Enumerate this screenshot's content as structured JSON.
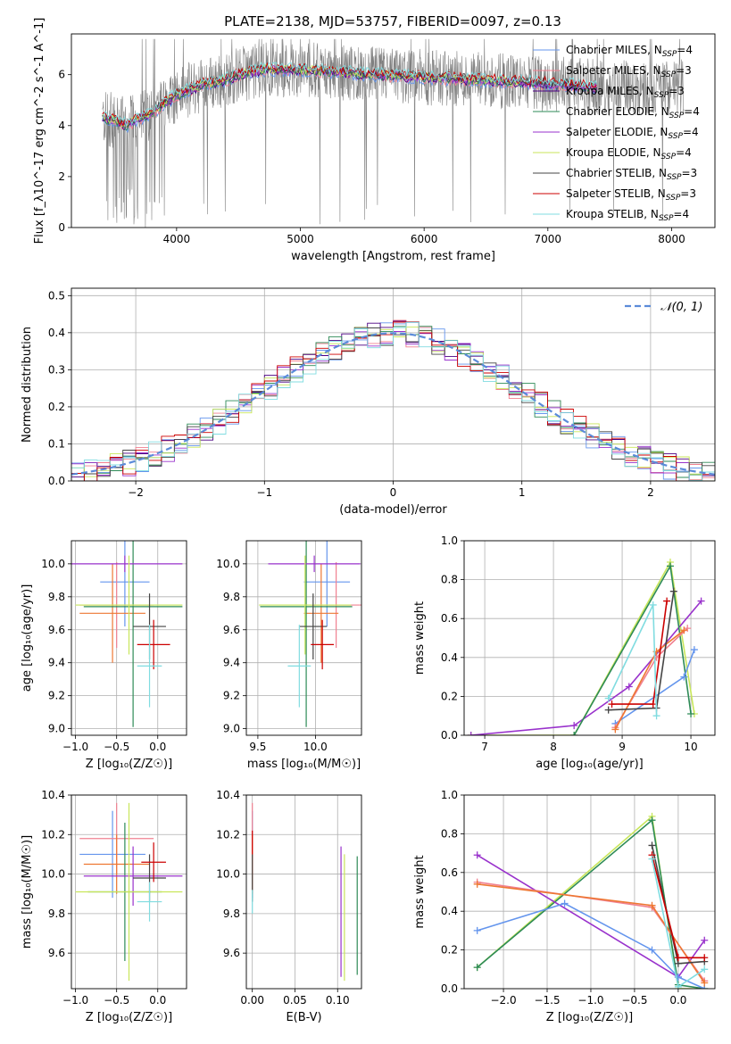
{
  "figure": {
    "title": "PLATE=2138, MJD=53757, FIBERID=0097, z=0.13"
  },
  "colors": {
    "Chabrier MILES": "#6495ed",
    "Salpeter MILES": "#f08090",
    "Kroupa MILES": "#4b0082",
    "Chabrier ELODIE": "#2e8b57",
    "Salpeter ELODIE": "#9932cc",
    "Kroupa ELODIE": "#c8e65a",
    "Chabrier STELIB": "#444444",
    "Salpeter STELIB": "#cc0000",
    "Kroupa STELIB": "#80dce0",
    "Kroupa MILES (point plots)": "#ee7733",
    "spectrum": "#808080"
  },
  "chart_data": [
    {
      "id": "spectrum",
      "type": "line",
      "title": "PLATE=2138, MJD=53757, FIBERID=0097, z=0.13",
      "xlabel": "wavelength [Angstrom, rest frame]",
      "ylabel": "Flux [f_λ10^-17 erg cm^-2 s^-1 A^-1]",
      "xlim": [
        3150,
        8350
      ],
      "ylim": [
        0,
        7.6
      ],
      "xticks": [
        4000,
        5000,
        6000,
        7000,
        8000
      ],
      "yticks": [
        0,
        2,
        4,
        6
      ],
      "legend_position": "top-right",
      "legend": [
        {
          "label": "Chabrier MILES, N",
          "sub": "SSP",
          "eq": "=4",
          "color": "#6495ed"
        },
        {
          "label": "Salpeter MILES, N",
          "sub": "SSP",
          "eq": "=3",
          "color": "#f08090"
        },
        {
          "label": "Kroupa MILES, N",
          "sub": "SSP",
          "eq": "=3",
          "color": "#4b0082"
        },
        {
          "label": "Chabrier ELODIE, N",
          "sub": "SSP",
          "eq": "=4",
          "color": "#2e8b57"
        },
        {
          "label": "Salpeter ELODIE, N",
          "sub": "SSP",
          "eq": "=4",
          "color": "#9932cc"
        },
        {
          "label": "Kroupa ELODIE, N",
          "sub": "SSP",
          "eq": "=4",
          "color": "#c8e65a"
        },
        {
          "label": "Chabrier STELIB, N",
          "sub": "SSP",
          "eq": "=3",
          "color": "#444444"
        },
        {
          "label": "Salpeter STELIB, N",
          "sub": "SSP",
          "eq": "=3",
          "color": "#cc0000"
        },
        {
          "label": "Kroupa STELIB, N",
          "sub": "SSP",
          "eq": "=4",
          "color": "#80dce0"
        }
      ],
      "model_continuum": {
        "x": [
          3400,
          3500,
          3600,
          3700,
          3800,
          3900,
          4000,
          4100,
          4200,
          4300,
          4400,
          4500,
          4700,
          5000,
          5300,
          5600,
          6000,
          6400,
          6800,
          7200,
          7400
        ],
        "y": [
          4.3,
          4.2,
          4.0,
          4.3,
          4.5,
          4.9,
          5.2,
          5.4,
          5.6,
          5.7,
          5.8,
          6.0,
          6.2,
          6.2,
          6.1,
          6.0,
          5.9,
          5.8,
          5.7,
          5.6,
          5.5
        ]
      }
    },
    {
      "id": "residuals",
      "type": "line",
      "xlabel": "(data-model)/error",
      "ylabel": "Normed distribution",
      "xlim": [
        -2.5,
        2.5
      ],
      "ylim": [
        0,
        0.52
      ],
      "xticks": [
        -2,
        -1,
        0,
        1,
        2
      ],
      "yticks": [
        0.0,
        0.1,
        0.2,
        0.3,
        0.4,
        0.5
      ],
      "legend_position": "top-right",
      "legend_label": "𝒩(0, 1)",
      "gaussian": {
        "mean": 0,
        "sigma": 1,
        "color": "#5b8bd9"
      }
    },
    {
      "id": "age-vs-Z",
      "type": "scatter",
      "xlabel": "Z [log₁₀(Z/Z☉)]",
      "ylabel": "age  [log₁₀(age/yr)]",
      "xlim": [
        -1.05,
        0.35
      ],
      "ylim": [
        8.96,
        10.14
      ],
      "xticks": [
        -1.0,
        -0.5,
        0.0
      ],
      "yticks": [
        9.0,
        9.2,
        9.4,
        9.6,
        9.8,
        10.0
      ],
      "series": [
        {
          "name": "Chabrier MILES",
          "color": "#6495ed",
          "x": -0.4,
          "xerr": 0.3,
          "y": 9.89,
          "yerr": 0.27
        },
        {
          "name": "Salpeter MILES",
          "color": "#f08090",
          "x": -0.5,
          "xerr": 0.45,
          "y": 9.75,
          "yerr": 0.26
        },
        {
          "name": "Kroupa MILES",
          "color": "#ee7733",
          "x": -0.55,
          "xerr": 0.4,
          "y": 9.7,
          "yerr": 0.3
        },
        {
          "name": "Chabrier ELODIE",
          "color": "#2e8b57",
          "x": -0.3,
          "xerr": 0.6,
          "y": 9.74,
          "yerr": 0.73
        },
        {
          "name": "Salpeter ELODIE",
          "color": "#9932cc",
          "x": -0.4,
          "xerr": 0.7,
          "y": 10.0,
          "yerr": 0.05
        },
        {
          "name": "Kroupa ELODIE",
          "color": "#c8e65a",
          "x": -0.35,
          "xerr": 0.65,
          "y": 9.75,
          "yerr": 0.3
        },
        {
          "name": "Chabrier STELIB",
          "color": "#444444",
          "x": -0.1,
          "xerr": 0.2,
          "y": 9.62,
          "yerr": 0.2
        },
        {
          "name": "Salpeter STELIB",
          "color": "#cc0000",
          "x": -0.05,
          "xerr": 0.2,
          "y": 9.51,
          "yerr": 0.15
        },
        {
          "name": "Kroupa STELIB",
          "color": "#80dce0",
          "x": -0.1,
          "xerr": 0.15,
          "y": 9.38,
          "yerr": 0.25
        }
      ]
    },
    {
      "id": "age-vs-mass",
      "type": "scatter",
      "xlabel": "mass [log₁₀(M/M☉)]",
      "ylabel": "",
      "xlim": [
        9.4,
        10.4
      ],
      "ylim": [
        8.96,
        10.14
      ],
      "xticks": [
        9.5,
        10.0
      ],
      "yticks": [
        9.0,
        9.2,
        9.4,
        9.6,
        9.8,
        10.0
      ],
      "series": [
        {
          "name": "Chabrier MILES",
          "color": "#6495ed",
          "x": 10.1,
          "xerr": 0.2,
          "y": 9.89,
          "yerr": 0.27
        },
        {
          "name": "Salpeter MILES",
          "color": "#f08090",
          "x": 10.18,
          "xerr": 0.22,
          "y": 9.75,
          "yerr": 0.26
        },
        {
          "name": "Kroupa MILES",
          "color": "#ee7733",
          "x": 10.05,
          "xerr": 0.15,
          "y": 9.7,
          "yerr": 0.3
        },
        {
          "name": "Chabrier ELODIE",
          "color": "#2e8b57",
          "x": 9.92,
          "xerr": 0.4,
          "y": 9.74,
          "yerr": 0.73
        },
        {
          "name": "Salpeter ELODIE",
          "color": "#9932cc",
          "x": 9.99,
          "xerr": 0.4,
          "y": 10.0,
          "yerr": 0.05
        },
        {
          "name": "Kroupa ELODIE",
          "color": "#c8e65a",
          "x": 9.91,
          "xerr": 0.4,
          "y": 9.75,
          "yerr": 0.3
        },
        {
          "name": "Chabrier STELIB",
          "color": "#444444",
          "x": 9.98,
          "xerr": 0.12,
          "y": 9.62,
          "yerr": 0.2
        },
        {
          "name": "Salpeter STELIB",
          "color": "#cc0000",
          "x": 10.06,
          "xerr": 0.1,
          "y": 9.51,
          "yerr": 0.15
        },
        {
          "name": "Kroupa STELIB",
          "color": "#80dce0",
          "x": 9.86,
          "xerr": 0.1,
          "y": 9.38,
          "yerr": 0.25
        }
      ]
    },
    {
      "id": "weight-vs-age",
      "type": "line",
      "xlabel": "age  [log₁₀(age/yr)]",
      "ylabel": "mass weight",
      "xlim": [
        6.7,
        10.35
      ],
      "ylim": [
        0,
        1.0
      ],
      "xticks": [
        7,
        8,
        9,
        10
      ],
      "yticks": [
        0.0,
        0.2,
        0.4,
        0.6,
        0.8,
        1.0
      ],
      "series": [
        {
          "name": "Kroupa ELODIE",
          "color": "#c8e65a",
          "x": [
            6.8,
            8.3,
            9.7,
            10.05
          ],
          "y": [
            0.0,
            0.0,
            0.89,
            0.11
          ]
        },
        {
          "name": "Salpeter ELODIE",
          "color": "#9932cc",
          "x": [
            6.8,
            8.3,
            9.1,
            10.15
          ],
          "y": [
            0.0,
            0.05,
            0.25,
            0.69
          ]
        },
        {
          "name": "Chabrier ELODIE",
          "color": "#2e8b57",
          "x": [
            8.3,
            9.7,
            10.0
          ],
          "y": [
            0.0,
            0.87,
            0.11
          ]
        },
        {
          "name": "Chabrier MILES",
          "color": "#6495ed",
          "x": [
            8.9,
            9.9,
            10.05
          ],
          "y": [
            0.06,
            0.3,
            0.44
          ]
        },
        {
          "name": "Salpeter MILES",
          "color": "#f08090",
          "x": [
            8.9,
            9.5,
            9.95
          ],
          "y": [
            0.04,
            0.4,
            0.55
          ]
        },
        {
          "name": "Kroupa MILES",
          "color": "#ee7733",
          "x": [
            8.9,
            9.5,
            9.9
          ],
          "y": [
            0.03,
            0.43,
            0.54
          ]
        },
        {
          "name": "Chabrier STELIB",
          "color": "#444444",
          "x": [
            8.8,
            9.5,
            9.75
          ],
          "y": [
            0.13,
            0.14,
            0.74
          ]
        },
        {
          "name": "Salpeter STELIB",
          "color": "#cc0000",
          "x": [
            8.85,
            9.45,
            9.65
          ],
          "y": [
            0.16,
            0.16,
            0.69
          ]
        },
        {
          "name": "Kroupa STELIB",
          "color": "#80dce0",
          "x": [
            8.8,
            9.45,
            9.5
          ],
          "y": [
            0.19,
            0.67,
            0.1
          ]
        }
      ]
    },
    {
      "id": "mass-vs-Z",
      "type": "scatter",
      "xlabel": "Z [log₁₀(Z/Z☉)]",
      "ylabel": "mass [log₁₀(M/M☉)]",
      "xlim": [
        -1.05,
        0.35
      ],
      "ylim": [
        9.42,
        10.4
      ],
      "xticks": [
        -1.0,
        -0.5,
        0.0
      ],
      "yticks": [
        9.6,
        9.8,
        10.0,
        10.2,
        10.4
      ],
      "series": [
        {
          "name": "Chabrier MILES",
          "color": "#6495ed",
          "x": -0.55,
          "xerr": 0.4,
          "y": 10.1,
          "yerr": 0.22
        },
        {
          "name": "Salpeter MILES",
          "color": "#f08090",
          "x": -0.5,
          "xerr": 0.45,
          "y": 10.18,
          "yerr": 0.18
        },
        {
          "name": "Kroupa MILES",
          "color": "#ee7733",
          "x": -0.5,
          "xerr": 0.4,
          "y": 10.05,
          "yerr": 0.15
        },
        {
          "name": "Chabrier ELODIE",
          "color": "#2e8b57",
          "x": -0.4,
          "xerr": 0.45,
          "y": 9.91,
          "yerr": 0.35
        },
        {
          "name": "Salpeter ELODIE",
          "color": "#9932cc",
          "x": -0.3,
          "xerr": 0.6,
          "y": 9.99,
          "yerr": 0.15
        },
        {
          "name": "Kroupa ELODIE",
          "color": "#c8e65a",
          "x": -0.35,
          "xerr": 0.65,
          "y": 9.91,
          "yerr": 0.45
        },
        {
          "name": "Chabrier STELIB",
          "color": "#444444",
          "x": -0.1,
          "xerr": 0.2,
          "y": 9.98,
          "yerr": 0.12
        },
        {
          "name": "Salpeter STELIB",
          "color": "#cc0000",
          "x": -0.05,
          "xerr": 0.15,
          "y": 10.06,
          "yerr": 0.1
        },
        {
          "name": "Kroupa STELIB",
          "color": "#80dce0",
          "x": -0.1,
          "xerr": 0.15,
          "y": 9.86,
          "yerr": 0.1
        }
      ]
    },
    {
      "id": "mass-vs-EBV",
      "type": "scatter",
      "xlabel": "E(B-V)",
      "ylabel": "",
      "xlim": [
        -0.007,
        0.128
      ],
      "ylim": [
        9.42,
        10.4
      ],
      "xticks": [
        0.0,
        0.05,
        0.1
      ],
      "yticks": [
        9.6,
        9.8,
        10.0,
        10.2,
        10.4
      ],
      "series": [
        {
          "name": "Chabrier MILES",
          "color": "#6495ed",
          "x": 0.0,
          "y": 10.1,
          "yerr": 0.22
        },
        {
          "name": "Salpeter MILES",
          "color": "#f08090",
          "x": 0.0,
          "y": 10.18,
          "yerr": 0.18
        },
        {
          "name": "Kroupa MILES",
          "color": "#ee7733",
          "x": 0.0,
          "y": 10.05,
          "yerr": 0.15
        },
        {
          "name": "Chabrier ELODIE",
          "color": "#2e8b57",
          "x": 0.123,
          "y": 9.79,
          "yerr": 0.3
        },
        {
          "name": "Salpeter ELODIE",
          "color": "#9932cc",
          "x": 0.104,
          "y": 9.81,
          "yerr": 0.33
        },
        {
          "name": "Kroupa ELODIE",
          "color": "#c8e65a",
          "x": 0.108,
          "y": 9.78,
          "yerr": 0.32
        },
        {
          "name": "Chabrier STELIB",
          "color": "#444444",
          "x": 0.0,
          "y": 9.98,
          "yerr": 0.12
        },
        {
          "name": "Salpeter STELIB",
          "color": "#cc0000",
          "x": 0.0,
          "y": 10.16,
          "yerr": 0.06
        },
        {
          "name": "Kroupa STELIB",
          "color": "#80dce0",
          "x": 0.0,
          "y": 9.86,
          "yerr": 0.06
        }
      ]
    },
    {
      "id": "weight-vs-Z",
      "type": "line",
      "xlabel": "Z [log₁₀(Z/Z☉)]",
      "ylabel": "mass weight",
      "xlim": [
        -2.45,
        0.42
      ],
      "ylim": [
        0,
        1.0
      ],
      "xticks": [
        -2.0,
        -1.5,
        -1.0,
        -0.5,
        0.0
      ],
      "yticks": [
        0.0,
        0.2,
        0.4,
        0.6,
        0.8,
        1.0
      ],
      "series": [
        {
          "name": "Kroupa ELODIE",
          "color": "#c8e65a",
          "x": [
            -2.3,
            -0.3,
            0.0,
            0.3
          ],
          "y": [
            0.11,
            0.89,
            0.0,
            0.0
          ]
        },
        {
          "name": "Chabrier ELODIE",
          "color": "#2e8b57",
          "x": [
            -2.3,
            -0.3,
            0.0,
            0.3
          ],
          "y": [
            0.11,
            0.87,
            0.02,
            0.0
          ]
        },
        {
          "name": "Salpeter ELODIE",
          "color": "#9932cc",
          "x": [
            -2.3,
            0.0,
            0.3
          ],
          "y": [
            0.69,
            0.06,
            0.25
          ]
        },
        {
          "name": "Chabrier MILES",
          "color": "#6495ed",
          "x": [
            -2.3,
            -1.3,
            -0.3,
            0.0,
            0.3
          ],
          "y": [
            0.3,
            0.44,
            0.2,
            0.06,
            0.0
          ]
        },
        {
          "name": "Salpeter MILES",
          "color": "#f08090",
          "x": [
            -2.3,
            -0.3,
            0.3
          ],
          "y": [
            0.55,
            0.42,
            0.04
          ]
        },
        {
          "name": "Kroupa MILES",
          "color": "#ee7733",
          "x": [
            -2.3,
            -0.3,
            0.3
          ],
          "y": [
            0.54,
            0.43,
            0.03
          ]
        },
        {
          "name": "Chabrier STELIB",
          "color": "#444444",
          "x": [
            -0.3,
            0.0,
            0.3
          ],
          "y": [
            0.74,
            0.13,
            0.14
          ]
        },
        {
          "name": "Salpeter STELIB",
          "color": "#cc0000",
          "x": [
            -0.3,
            0.0,
            0.3
          ],
          "y": [
            0.69,
            0.16,
            0.16
          ]
        },
        {
          "name": "Kroupa STELIB",
          "color": "#80dce0",
          "x": [
            -0.3,
            0.0,
            0.3
          ],
          "y": [
            0.67,
            0.01,
            0.1
          ]
        }
      ]
    }
  ]
}
